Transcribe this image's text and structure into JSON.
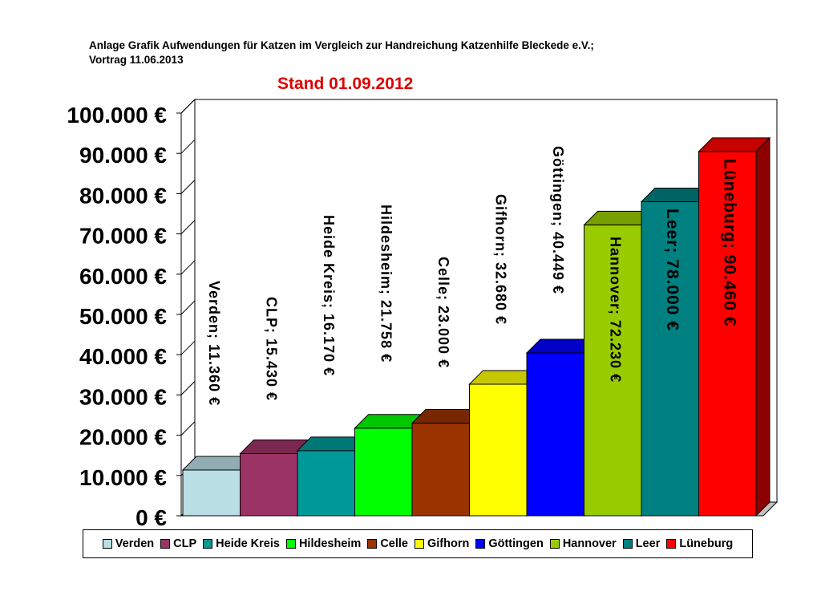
{
  "header": {
    "title_line1": "Anlage Grafik Aufwendungen für Katzen im Vergleich zur Handreichung Katzenhilfe Bleckede e.V.;",
    "title_line2": "Vortrag 11.06.2013",
    "subtitle": "Stand 01.09.2012"
  },
  "chart_data": {
    "type": "bar",
    "title": "Anlage Grafik Aufwendungen für Katzen im Vergleich zur Handreichung Katzenhilfe Bleckede e.V.; Vortrag 11.06.2013",
    "subtitle": "Stand 01.09.2012",
    "categories": [
      "Verden",
      "CLP",
      "Heide Kreis",
      "Hildesheim",
      "Celle",
      "Gifhorn",
      "Göttingen",
      "Hannover",
      "Leer",
      "Lüneburg"
    ],
    "values": [
      11360,
      15430,
      16170,
      21758,
      23000,
      32680,
      40449,
      72230,
      78000,
      90460
    ],
    "data_labels": [
      "Verden; 11.360 €",
      "CLP; 15.430 €",
      "Heide Kreis; 16.170 €",
      "Hildesheim; 21.758 €",
      "Celle; 23.000 €",
      "Gifhorn; 32.680 €",
      "Göttingen; 40.449 €",
      "Hannover; 72.230 €",
      "Leer; 78.000 €",
      "Lüneburg; 90.460 €"
    ],
    "colors": [
      "#b9dfe4",
      "#9c3366",
      "#009999",
      "#00ff00",
      "#993300",
      "#ffff00",
      "#0000ff",
      "#99cc00",
      "#008080",
      "#ff0000"
    ],
    "ylim": [
      0,
      100000
    ],
    "y_ticks": [
      0,
      10000,
      20000,
      30000,
      40000,
      50000,
      60000,
      70000,
      80000,
      90000,
      100000
    ],
    "y_tick_labels": [
      "0 €",
      "10.000 €",
      "20.000 €",
      "30.000 €",
      "40.000 €",
      "50.000 €",
      "60.000 €",
      "70.000 €",
      "80.000 €",
      "90.000 €",
      "100.000 €"
    ],
    "legend_position": "bottom",
    "three_d": true
  }
}
